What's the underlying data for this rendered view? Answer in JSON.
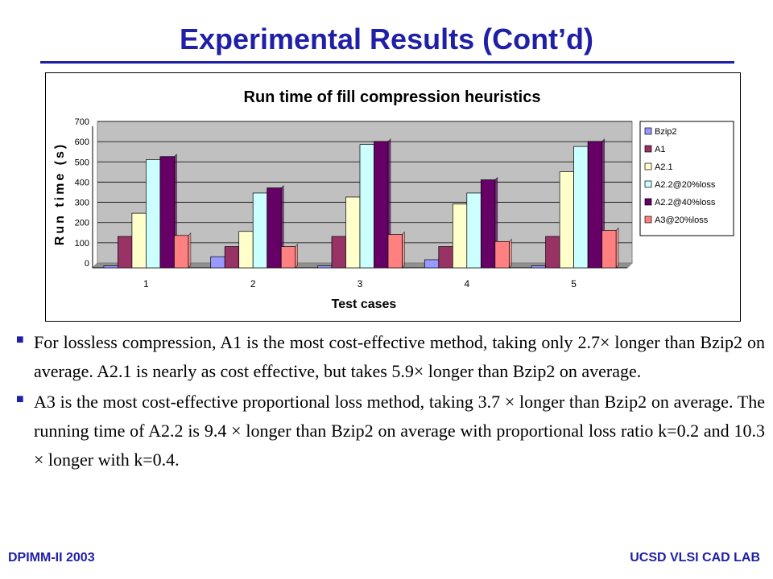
{
  "slide": {
    "title": "Experimental Results (Cont’d)",
    "footer_left": "DPIMM-II 2003",
    "footer_right": "UCSD VLSI CAD LAB"
  },
  "bullets": [
    "For lossless compression, A1 is the most cost-effective method, taking only 2.7× longer than Bzip2 on average. A2.1 is nearly as cost effective, but takes 5.9× longer than Bzip2 on average.",
    "A3 is the most cost-effective proportional loss method, taking 3.7 × longer than Bzip2 on average. The running time of A2.2 is 9.4 × longer than Bzip2 on average with proportional loss ratio k=0.2 and 10.3 × longer with k=0.4."
  ],
  "chart_data": {
    "type": "bar",
    "title": "Run time of fill compression heuristics",
    "xlabel": "Test cases",
    "ylabel": "Run time (s)",
    "categories": [
      "1",
      "2",
      "3",
      "4",
      "5"
    ],
    "ylim": [
      0,
      700
    ],
    "yticks": [
      "0",
      "100",
      "200",
      "300",
      "400",
      "500",
      "600",
      "700"
    ],
    "grid": true,
    "legend_position": "right",
    "series": [
      {
        "name": "Bzip2",
        "values": [
          10,
          55,
          10,
          40,
          10
        ],
        "color": "#9999ff"
      },
      {
        "name": "A1",
        "values": [
          155,
          105,
          155,
          105,
          155
        ],
        "color": "#993366"
      },
      {
        "name": "A2.1",
        "values": [
          270,
          180,
          350,
          315,
          475
        ],
        "color": "#ffffcc"
      },
      {
        "name": "A2.2@20%loss",
        "values": [
          535,
          370,
          610,
          370,
          600
        ],
        "color": "#ccffff"
      },
      {
        "name": "A2.2@40%loss",
        "values": [
          550,
          395,
          625,
          435,
          625
        ],
        "color": "#660066"
      },
      {
        "name": "A3@20%loss",
        "values": [
          160,
          105,
          165,
          130,
          185
        ],
        "color": "#ff8080"
      }
    ]
  }
}
